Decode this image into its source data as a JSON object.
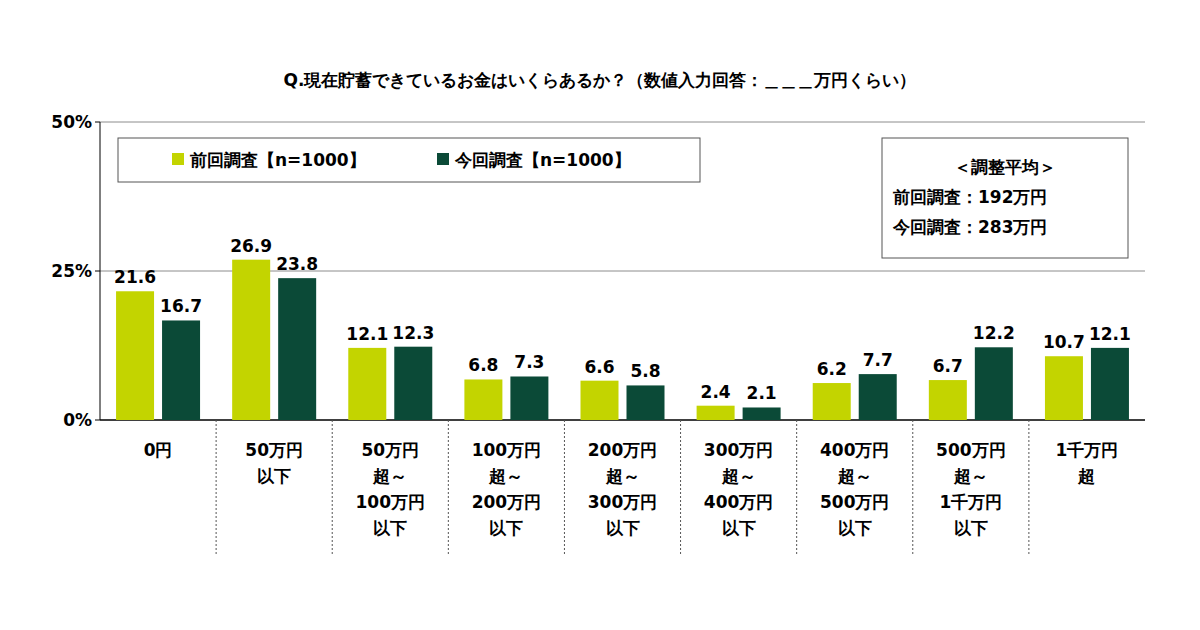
{
  "chart_data": {
    "type": "bar",
    "title": "Q.現在貯蓄できているお金はいくらあるか？（数値入力回答：＿＿＿万円くらい）",
    "categories": [
      "0円",
      "50万円\n以下",
      "50万円\n超～\n100万円\n以下",
      "100万円\n超～\n200万円\n以下",
      "200万円\n超～\n300万円\n以下",
      "300万円\n超～\n400万円\n以下",
      "400万円\n超～\n500万円\n以下",
      "500万円\n超～\n1千万円\n以下",
      "1千万円\n超"
    ],
    "series": [
      {
        "name": "前回調査【n=1000】",
        "color": "#c3d400",
        "values": [
          21.6,
          26.9,
          12.1,
          6.8,
          6.6,
          2.4,
          6.2,
          6.7,
          10.7
        ]
      },
      {
        "name": "今回調査【n=1000】",
        "color": "#0b4a37",
        "values": [
          16.7,
          23.8,
          12.3,
          7.3,
          5.8,
          2.1,
          7.7,
          12.2,
          12.1
        ]
      }
    ],
    "ylim": [
      0,
      50
    ],
    "yticks": [
      {
        "value": 0,
        "label": "0%"
      },
      {
        "value": 25,
        "label": "25%"
      },
      {
        "value": 50,
        "label": "50%"
      }
    ],
    "grid": true,
    "legend": "top-left",
    "data_labels": true,
    "annotations": [
      "＜調整平均＞",
      "前回調査：192万円",
      "今回調査：283万円"
    ]
  }
}
